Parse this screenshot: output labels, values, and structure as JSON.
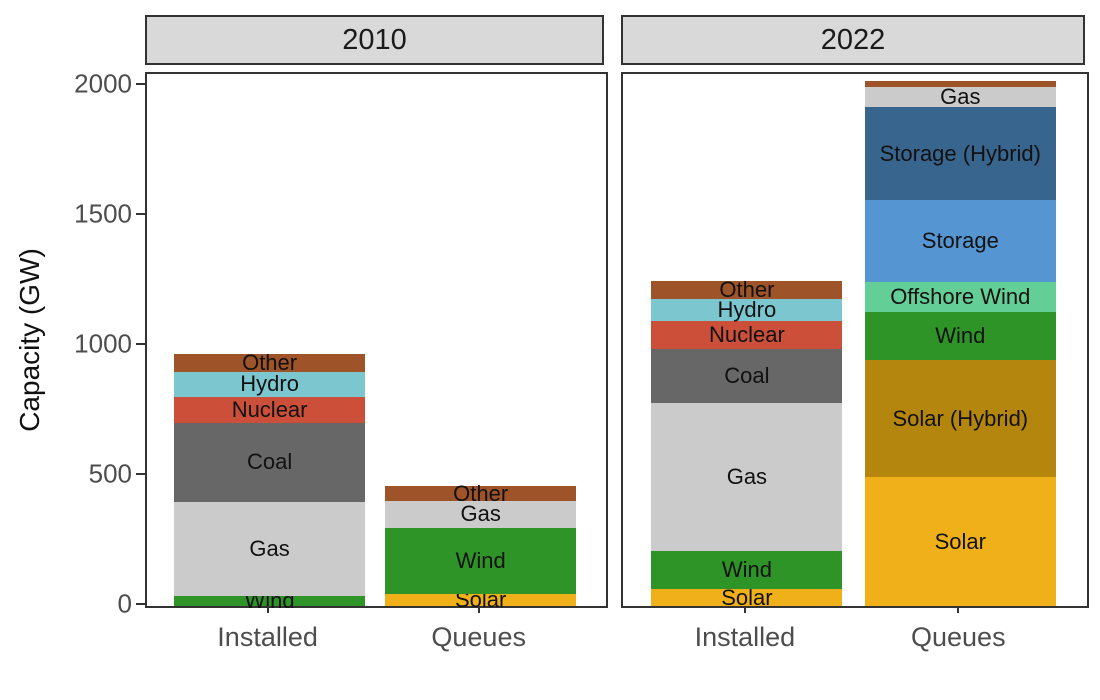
{
  "colors": {
    "solar": "#EFB019",
    "solar_hybrid": "#B5860D",
    "wind": "#2F9427",
    "offshore_wind": "#63CF97",
    "storage": "#5596D2",
    "storage_hybrid": "#38658E",
    "gas": "#CBCBCB",
    "coal": "#676767",
    "nuclear": "#CC4F39",
    "hydro": "#7BC6CF",
    "other": "#9E5328"
  },
  "chart_data": {
    "type": "bar",
    "stacked": true,
    "title": "",
    "ylabel": "Capacity (GW)",
    "xlabel": "",
    "ylim": [
      0,
      2045
    ],
    "y_ticks": [
      0,
      500,
      1000,
      1500,
      2000
    ],
    "grid": false,
    "legend": "none (segments labeled inline)",
    "categories": [
      "Installed",
      "Queues"
    ],
    "facets": [
      {
        "title": "2010",
        "bars": [
          {
            "category": "Installed",
            "segments": [
              {
                "name": "Wind",
                "value": 40,
                "color": "wind",
                "labeled": true
              },
              {
                "name": "Gas",
                "value": 360,
                "color": "gas",
                "labeled": true
              },
              {
                "name": "Coal",
                "value": 305,
                "color": "coal",
                "labeled": true
              },
              {
                "name": "Nuclear",
                "value": 100,
                "color": "nuclear",
                "labeled": true
              },
              {
                "name": "Hydro",
                "value": 95,
                "color": "hydro",
                "labeled": true
              },
              {
                "name": "Other",
                "value": 70,
                "color": "other",
                "labeled": true
              }
            ]
          },
          {
            "category": "Queues",
            "segments": [
              {
                "name": "Solar",
                "value": 45,
                "color": "solar",
                "labeled": true
              },
              {
                "name": "Wind",
                "value": 255,
                "color": "wind",
                "labeled": true
              },
              {
                "name": "Gas",
                "value": 105,
                "color": "gas",
                "labeled": true
              },
              {
                "name": "Other",
                "value": 55,
                "color": "other",
                "labeled": true
              }
            ]
          }
        ]
      },
      {
        "title": "2022",
        "bars": [
          {
            "category": "Installed",
            "segments": [
              {
                "name": "Solar",
                "value": 65,
                "color": "solar",
                "labeled": true
              },
              {
                "name": "Wind",
                "value": 145,
                "color": "wind",
                "labeled": true
              },
              {
                "name": "Gas",
                "value": 570,
                "color": "gas",
                "labeled": true
              },
              {
                "name": "Coal",
                "value": 210,
                "color": "coal",
                "labeled": true
              },
              {
                "name": "Nuclear",
                "value": 105,
                "color": "nuclear",
                "labeled": true
              },
              {
                "name": "Hydro",
                "value": 85,
                "color": "hydro",
                "labeled": true
              },
              {
                "name": "Other",
                "value": 70,
                "color": "other",
                "labeled": true
              }
            ]
          },
          {
            "category": "Queues",
            "segments": [
              {
                "name": "Solar",
                "value": 495,
                "color": "solar",
                "labeled": true
              },
              {
                "name": "Solar (Hybrid)",
                "value": 450,
                "color": "solar_hybrid",
                "labeled": true
              },
              {
                "name": "Wind",
                "value": 185,
                "color": "wind",
                "labeled": true
              },
              {
                "name": "Offshore Wind",
                "value": 115,
                "color": "offshore_wind",
                "labeled": true
              },
              {
                "name": "Storage",
                "value": 315,
                "color": "storage",
                "labeled": true
              },
              {
                "name": "Storage (Hybrid)",
                "value": 360,
                "color": "storage_hybrid",
                "labeled": true
              },
              {
                "name": "Gas",
                "value": 75,
                "color": "gas",
                "labeled": true
              },
              {
                "name": "Other",
                "value": 25,
                "color": "other",
                "labeled": false
              }
            ]
          }
        ]
      }
    ]
  }
}
